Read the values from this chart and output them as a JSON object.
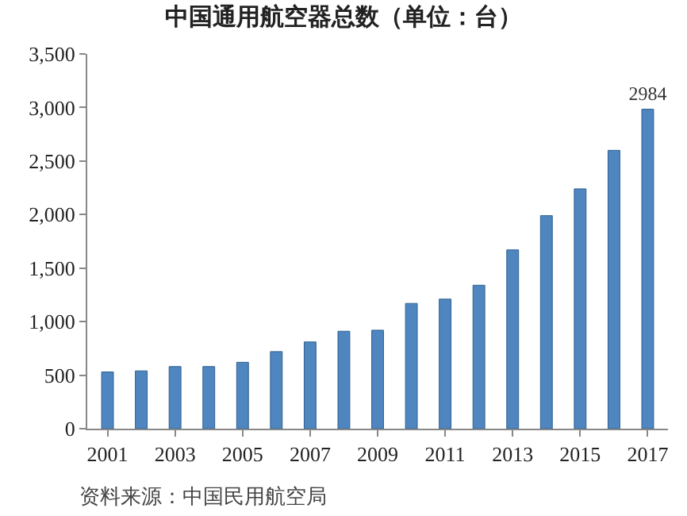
{
  "chart_data": {
    "type": "bar",
    "title": "中国通用航空器总数（单位：台）",
    "categories": [
      "2001",
      null,
      "2003",
      null,
      "2005",
      null,
      "2007",
      null,
      "2009",
      null,
      "2011",
      null,
      "2013",
      null,
      "2015",
      null,
      "2017"
    ],
    "values": [
      530,
      540,
      580,
      580,
      620,
      720,
      810,
      910,
      920,
      1170,
      1210,
      1340,
      1670,
      1990,
      2240,
      2600,
      2984
    ],
    "value_labels": [
      null,
      null,
      null,
      null,
      null,
      null,
      null,
      null,
      null,
      null,
      null,
      null,
      null,
      null,
      null,
      null,
      "2984"
    ],
    "color": "#4f86c0",
    "ylim": [
      0,
      3500
    ],
    "yticks": [
      {
        "value": 0,
        "label": "0"
      },
      {
        "value": 500,
        "label": "500"
      },
      {
        "value": 1000,
        "label": "1,000"
      },
      {
        "value": 1500,
        "label": "1,500"
      },
      {
        "value": 2000,
        "label": "2,000"
      },
      {
        "value": 2500,
        "label": "2,500"
      },
      {
        "value": 3000,
        "label": "3,000"
      },
      {
        "value": 3500,
        "label": "3,500"
      }
    ],
    "grid": false,
    "legend": false,
    "annotations": [
      "资料来源：中国民用航空局"
    ]
  }
}
